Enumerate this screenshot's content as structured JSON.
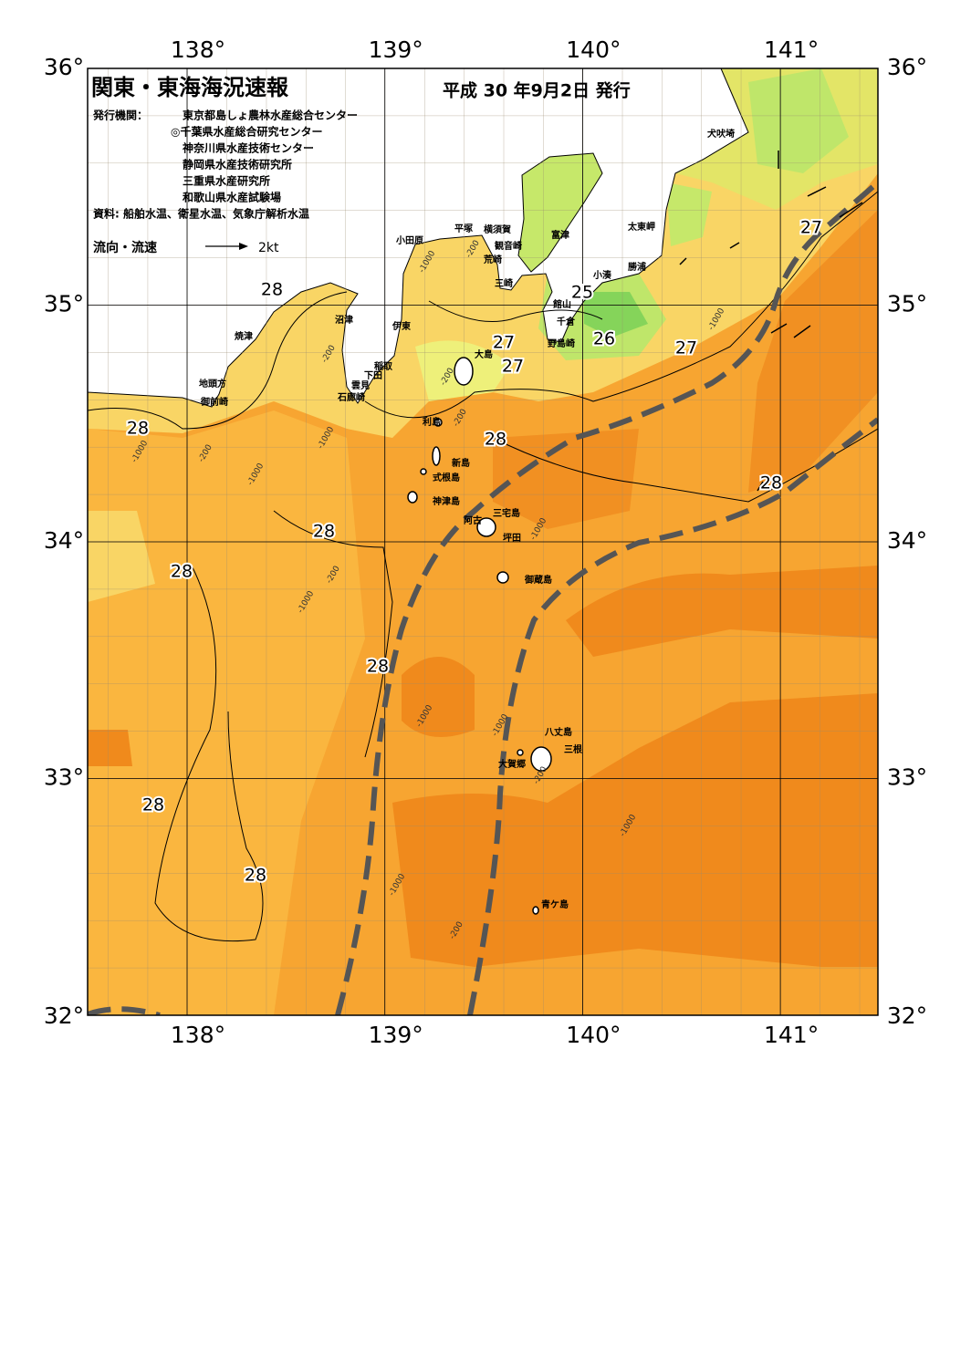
{
  "header": {
    "title": "関東・東海海況速報",
    "date": "平成 30 年9月2日 発行",
    "issuers_label": "発行機関：",
    "issuers": [
      "東京都島しょ農林水産総合センター",
      "◎千葉県水産総合研究センター",
      "神奈川県水産技術センター",
      "静岡県水産技術研究所",
      "三重県水産研究所",
      "和歌山県水産試験場"
    ],
    "source": "資料: 船舶水温、衛星水温、気象庁解析水温"
  },
  "legend": {
    "label": "流向・流速",
    "scale": "2kt"
  },
  "axes": {
    "lon_labels": [
      "138°",
      "139°",
      "140°",
      "141°"
    ],
    "lat_labels": [
      "36°",
      "35°",
      "34°",
      "33°",
      "32°"
    ]
  },
  "contour_labels": [
    "28",
    "27",
    "25",
    "26",
    "27",
    "27",
    "27",
    "28",
    "28",
    "28",
    "28",
    "28",
    "28",
    "28",
    "28"
  ],
  "place_names": [
    "犬吠埼",
    "太東岬",
    "勝浦",
    "小湊",
    "館山",
    "千倉",
    "野島崎",
    "富津",
    "横須賀",
    "観音崎",
    "荒崎",
    "三崎",
    "平塚",
    "小田原",
    "沼津",
    "伊東",
    "焼津",
    "稲取",
    "下田",
    "雲見",
    "石廊崎",
    "地頭方",
    "御前崎",
    "大島",
    "利島",
    "新島",
    "式根島",
    "神津島",
    "三宅島",
    "阿古",
    "坪田",
    "御蔵島",
    "八丈島",
    "三根",
    "大賀郷",
    "青ケ島"
  ],
  "depth_labels": [
    "-1000",
    "-200",
    "-200",
    "-200",
    "-200",
    "-1000",
    "-200",
    "-1000",
    "-1000",
    "-1000",
    "-200",
    "-1000",
    "-1000",
    "-1000",
    "-200",
    "-1000",
    "-1000",
    "-200",
    "-1000"
  ]
}
